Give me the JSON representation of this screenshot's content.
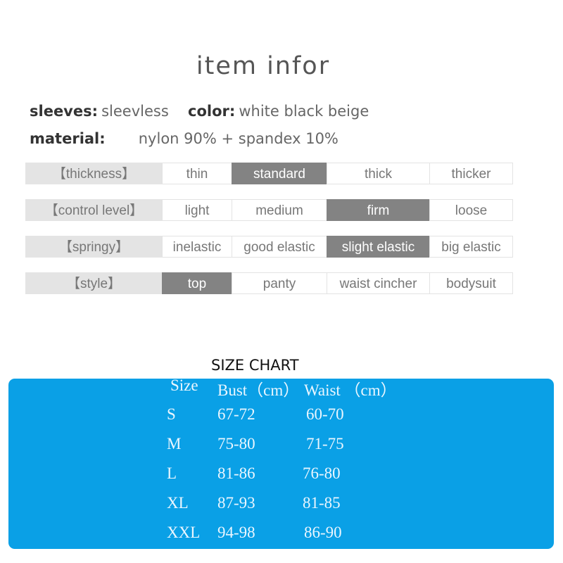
{
  "title": "item infor",
  "specs": {
    "sleeves_label": "sleeves:",
    "sleeves_value": "sleevless",
    "color_label": "color:",
    "color_value": "white black beige",
    "material_label": "material:",
    "material_value": "nylon 90% + spandex 10%"
  },
  "attributes": [
    {
      "label": "【thickness】",
      "options": [
        "thin",
        "standard",
        "thick",
        "thicker"
      ],
      "selected": "standard"
    },
    {
      "label": "【control level】",
      "options": [
        "light",
        "medium",
        "firm",
        "loose"
      ],
      "selected": "firm"
    },
    {
      "label": "【springy】",
      "options": [
        "inelastic",
        "good elastic",
        "slight elastic",
        "big elastic"
      ],
      "selected": "slight elastic"
    },
    {
      "label": "【style】",
      "options": [
        "top",
        "panty",
        "waist cincher",
        "bodysuit"
      ],
      "selected": "top"
    }
  ],
  "size_chart": {
    "title": "SIZE CHART",
    "background": "#0aa0e6",
    "headers": [
      "Size",
      "Bust（cm）",
      "Waist （cm）"
    ],
    "rows": [
      [
        "S",
        "67-72",
        "60-70"
      ],
      [
        "M",
        "75-80",
        "71-75"
      ],
      [
        "L",
        "81-86",
        "76-80"
      ],
      [
        "XL",
        "87-93",
        "81-85"
      ],
      [
        "XXL",
        "94-98",
        "86-90"
      ]
    ]
  }
}
